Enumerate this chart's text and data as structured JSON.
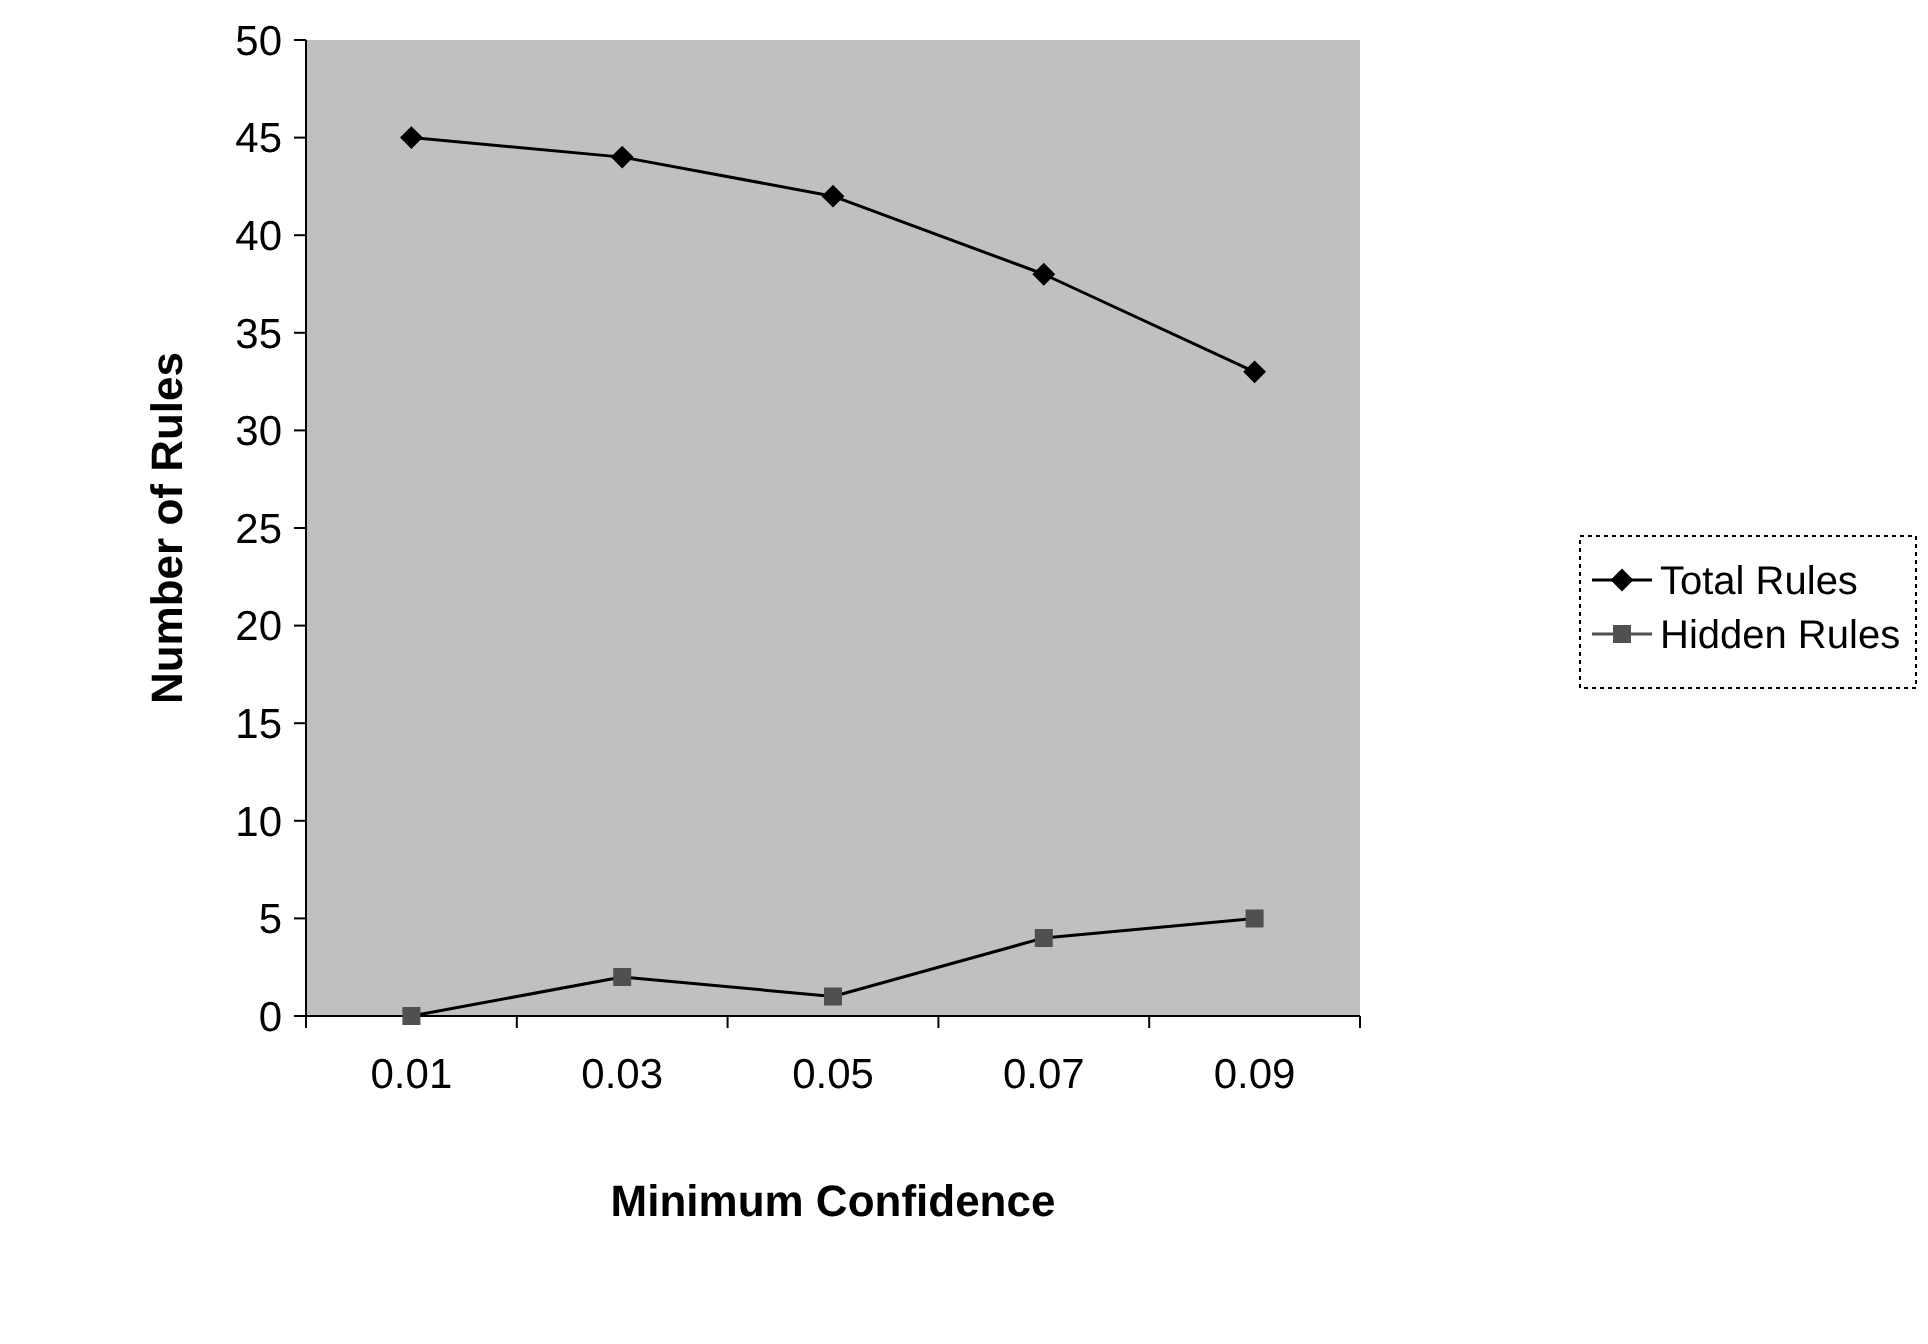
{
  "chart_data": {
    "type": "line",
    "xlabel": "Minimum Confidence",
    "ylabel": "Number of Rules",
    "categories": [
      "0.01",
      "0.03",
      "0.05",
      "0.07",
      "0.09"
    ],
    "series": [
      {
        "name": "Total Rules",
        "color": "#000000",
        "marker": "diamond",
        "values": [
          45,
          44,
          42,
          38,
          33
        ]
      },
      {
        "name": "Hidden Rules",
        "color": "#505050",
        "marker": "square",
        "values": [
          0,
          2,
          1,
          4,
          5
        ]
      }
    ],
    "ylim": [
      0,
      50
    ],
    "yticks": [
      0,
      5,
      10,
      15,
      20,
      25,
      30,
      35,
      40,
      45,
      50
    ],
    "grid": false,
    "legend": "right"
  }
}
